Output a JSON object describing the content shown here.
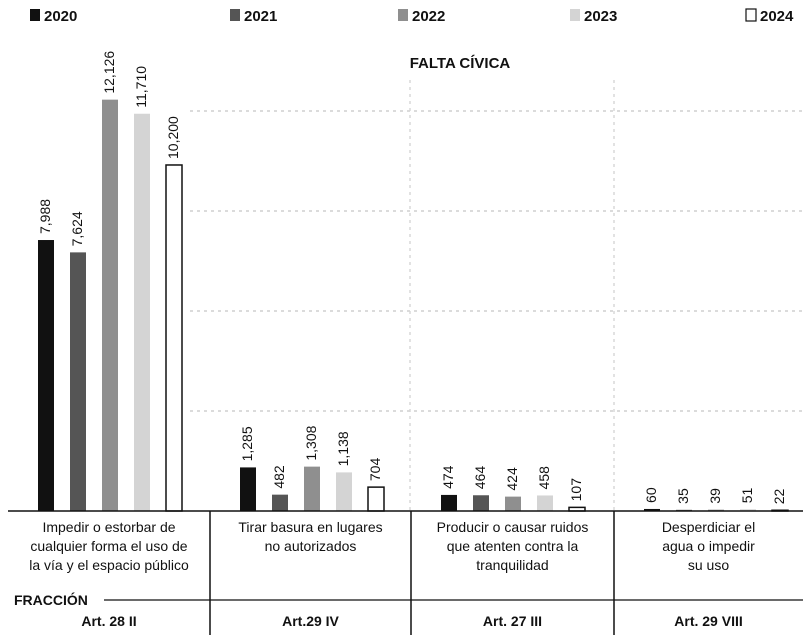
{
  "chart_data": {
    "type": "bar",
    "title": "FALTA CÍVICA",
    "row_label": "FRACCIÓN",
    "ylim": [
      0,
      13000
    ],
    "grid": true,
    "legend_position": "top",
    "categories": [
      "Impedir o estorbar de cualquier forma el uso de la vía y el espacio público",
      "Tirar basura en lugares no autorizados",
      "Producir o causar ruidos que atenten contra la tranquilidad",
      "Desperdiciar el agua o impedir su uso"
    ],
    "category_lines": [
      [
        "Impedir o estorbar de",
        "cualquier forma el uso de",
        "la vía y el espacio público"
      ],
      [
        "Tirar basura en lugares",
        "no autorizados"
      ],
      [
        "Producir o causar ruidos",
        "que atenten contra la",
        "tranquilidad"
      ],
      [
        "Desperdiciar el",
        "agua o impedir",
        "su uso"
      ]
    ],
    "fractions": [
      "Art. 28 II",
      "Art.29 IV",
      "Art. 27 III",
      "Art. 29 VIII"
    ],
    "series": [
      {
        "name": "2020",
        "color": "#111111",
        "values": [
          7988,
          1285,
          474,
          60
        ],
        "labels": [
          "7,988",
          "1,285",
          "474",
          "60"
        ]
      },
      {
        "name": "2021",
        "color": "#555555",
        "values": [
          7624,
          482,
          464,
          35
        ],
        "labels": [
          "7,624",
          "482",
          "464",
          "35"
        ]
      },
      {
        "name": "2022",
        "color": "#8f8f8f",
        "values": [
          12126,
          1308,
          424,
          39
        ],
        "labels": [
          "12,126",
          "1,308",
          "424",
          "39"
        ]
      },
      {
        "name": "2023",
        "color": "#d4d4d4",
        "values": [
          11710,
          1138,
          458,
          51
        ],
        "labels": [
          "11,710",
          "1,138",
          "458",
          "51"
        ]
      },
      {
        "name": "2024",
        "color": "#ffffff",
        "values": [
          10200,
          704,
          107,
          22
        ],
        "labels": [
          "10,200",
          "704",
          "107",
          "22"
        ]
      }
    ]
  }
}
